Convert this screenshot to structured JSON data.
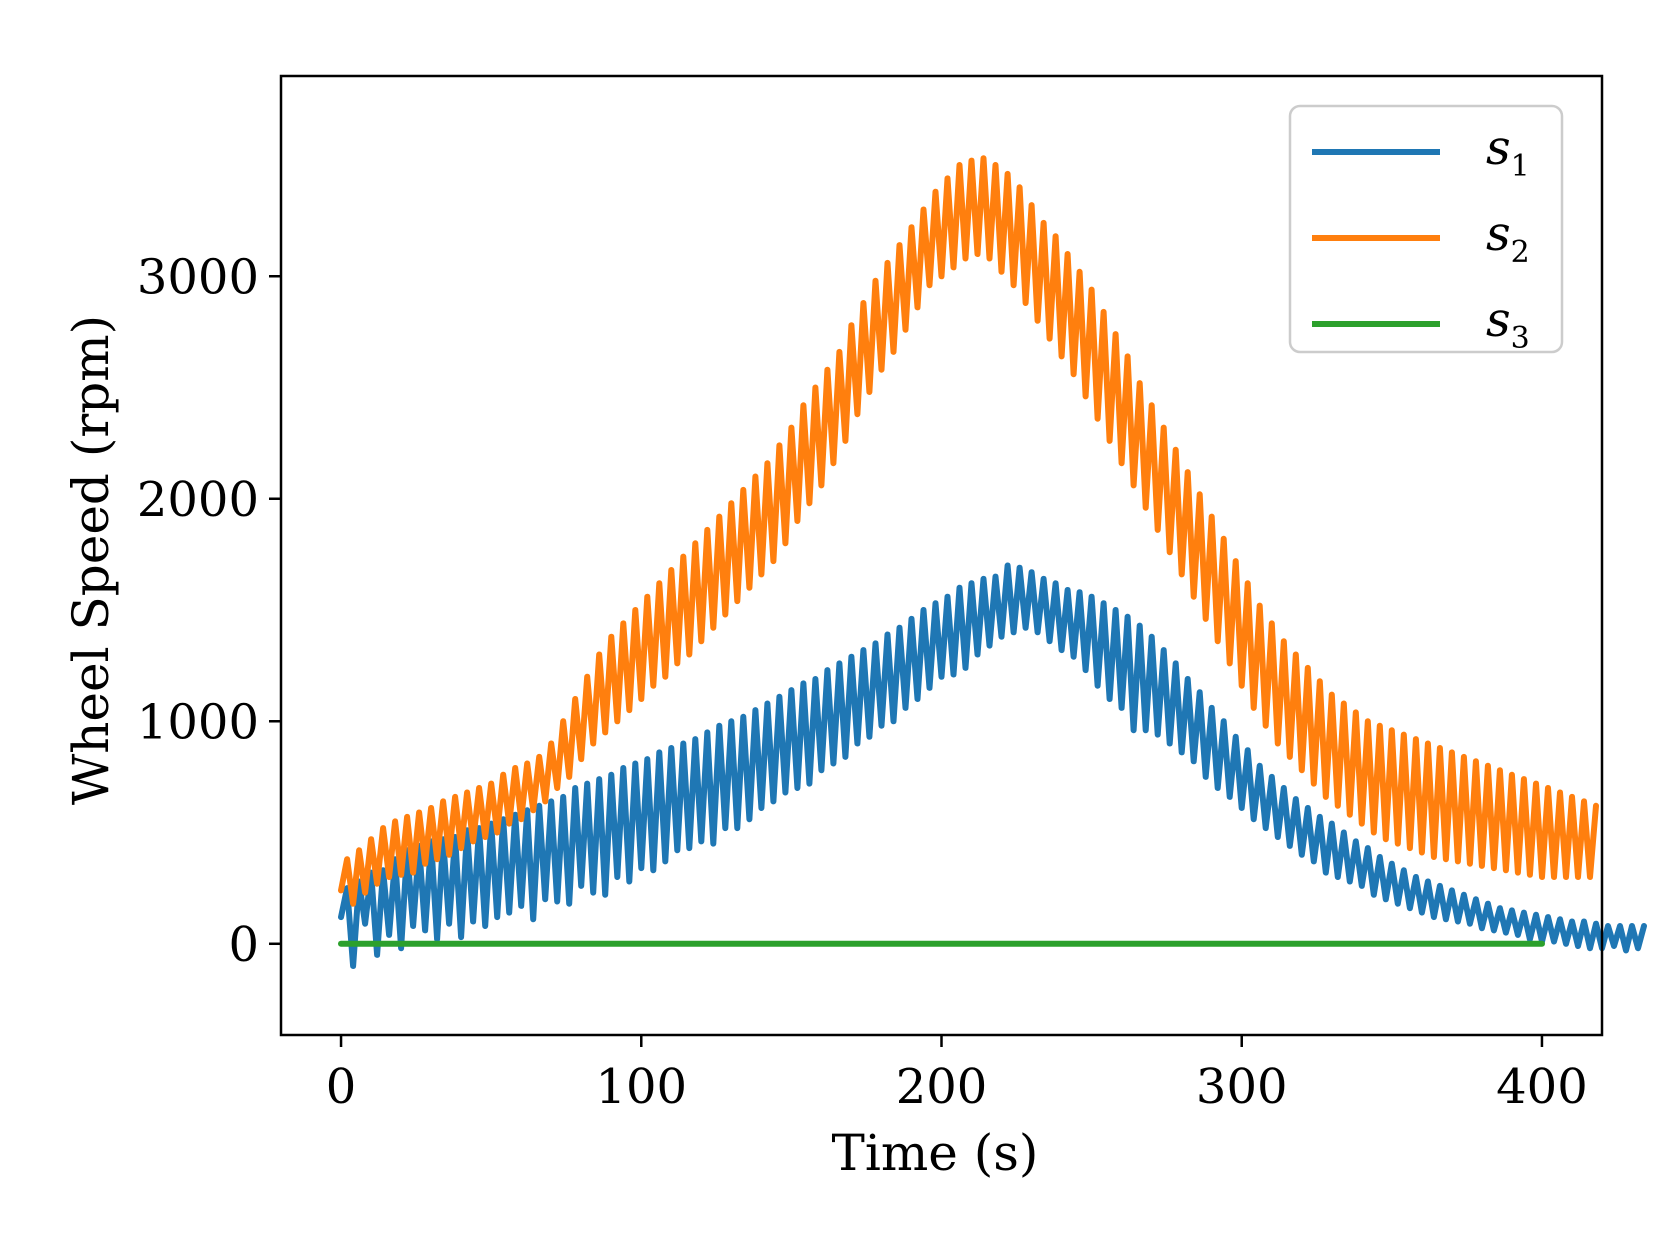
{
  "chart_data": {
    "type": "line",
    "title": "",
    "xlabel": "Time (s)",
    "ylabel": "Wheel Speed (rpm)",
    "xlim": [
      -20,
      420
    ],
    "ylim": [
      -410,
      3900
    ],
    "xticks": [
      0,
      100,
      200,
      300,
      400
    ],
    "yticks": [
      0,
      1000,
      2000,
      3000
    ],
    "grid": false,
    "legend_position": "top-right",
    "x_sample_spacing": 2,
    "series": [
      {
        "name": "s",
        "sub": "1",
        "color": "#1f77b4",
        "values": [
          120,
          250,
          -100,
          280,
          90,
          320,
          -50,
          330,
          40,
          380,
          -20,
          420,
          80,
          440,
          60,
          460,
          20,
          470,
          90,
          480,
          30,
          510,
          100,
          520,
          80,
          540,
          120,
          560,
          140,
          580,
          170,
          600,
          110,
          620,
          200,
          640,
          190,
          660,
          180,
          700,
          260,
          720,
          230,
          740,
          220,
          760,
          300,
          790,
          280,
          810,
          340,
          830,
          330,
          860,
          370,
          880,
          420,
          900,
          430,
          920,
          460,
          950,
          450,
          980,
          520,
          1000,
          520,
          1020,
          560,
          1050,
          610,
          1080,
          640,
          1110,
          680,
          1140,
          700,
          1170,
          720,
          1190,
          780,
          1230,
          810,
          1260,
          840,
          1290,
          900,
          1320,
          930,
          1350,
          980,
          1390,
          1000,
          1420,
          1060,
          1460,
          1100,
          1500,
          1150,
          1530,
          1200,
          1560,
          1210,
          1600,
          1240,
          1620,
          1300,
          1640,
          1340,
          1650,
          1380,
          1700,
          1400,
          1690,
          1420,
          1670,
          1400,
          1640,
          1360,
          1620,
          1320,
          1590,
          1290,
          1580,
          1230,
          1560,
          1160,
          1530,
          1100,
          1500,
          1060,
          1470,
          960,
          1430,
          960,
          1380,
          940,
          1320,
          900,
          1260,
          860,
          1190,
          820,
          1130,
          750,
          1060,
          700,
          1000,
          660,
          930,
          610,
          870,
          560,
          800,
          520,
          750,
          480,
          700,
          440,
          650,
          400,
          610,
          370,
          570,
          320,
          540,
          300,
          500,
          280,
          460,
          260,
          430,
          220,
          390,
          200,
          360,
          180,
          330,
          160,
          300,
          140,
          280,
          120,
          260,
          110,
          240,
          100,
          220,
          90,
          200,
          70,
          180,
          60,
          160,
          50,
          150,
          40,
          140,
          20,
          130,
          10,
          120,
          10,
          110,
          0,
          100,
          -10,
          100,
          -20,
          90,
          -20,
          80,
          -10,
          80,
          -30,
          80,
          -20,
          80
        ]
      },
      {
        "name": "s",
        "sub": "2",
        "color": "#ff7f0e",
        "values": [
          240,
          380,
          180,
          420,
          230,
          470,
          270,
          520,
          300,
          550,
          310,
          570,
          320,
          590,
          360,
          610,
          380,
          640,
          400,
          660,
          430,
          680,
          460,
          700,
          480,
          720,
          500,
          760,
          540,
          790,
          560,
          810,
          600,
          840,
          640,
          900,
          700,
          1000,
          750,
          1100,
          830,
          1200,
          900,
          1300,
          950,
          1380,
          1000,
          1440,
          1050,
          1500,
          1100,
          1560,
          1160,
          1620,
          1200,
          1680,
          1260,
          1740,
          1300,
          1800,
          1360,
          1860,
          1420,
          1920,
          1480,
          1980,
          1540,
          2040,
          1600,
          2100,
          1660,
          2160,
          1720,
          2240,
          1800,
          2320,
          1900,
          2420,
          1980,
          2500,
          2060,
          2580,
          2160,
          2660,
          2260,
          2780,
          2380,
          2880,
          2480,
          2980,
          2580,
          3060,
          2660,
          3140,
          2760,
          3220,
          2860,
          3300,
          2960,
          3380,
          3000,
          3440,
          3040,
          3500,
          3080,
          3520,
          3100,
          3530,
          3080,
          3500,
          3020,
          3460,
          2960,
          3400,
          2880,
          3320,
          2800,
          3240,
          2720,
          3180,
          2640,
          3100,
          2560,
          3020,
          2460,
          2940,
          2360,
          2840,
          2260,
          2740,
          2160,
          2640,
          2060,
          2520,
          1960,
          2420,
          1860,
          2320,
          1760,
          2220,
          1660,
          2120,
          1560,
          2020,
          1460,
          1920,
          1360,
          1820,
          1260,
          1720,
          1160,
          1620,
          1060,
          1520,
          980,
          1440,
          900,
          1360,
          840,
          1300,
          780,
          1240,
          720,
          1180,
          660,
          1120,
          620,
          1080,
          580,
          1040,
          540,
          1000,
          500,
          980,
          470,
          960,
          450,
          940,
          430,
          920,
          410,
          900,
          390,
          880,
          380,
          860,
          370,
          840,
          360,
          820,
          350,
          800,
          340,
          780,
          330,
          760,
          320,
          740,
          310,
          720,
          300,
          700,
          300,
          680,
          300,
          660,
          300,
          640,
          300,
          620
        ]
      },
      {
        "name": "s",
        "sub": "3",
        "color": "#2ca02c",
        "values": [
          0,
          0,
          0,
          0,
          0,
          0,
          0,
          0,
          0,
          0,
          0,
          0,
          0,
          0,
          0,
          0,
          0,
          0,
          0,
          0,
          0,
          0,
          0,
          0,
          0,
          0,
          0,
          0,
          0,
          0,
          0,
          0,
          0,
          0,
          0,
          0,
          0,
          0,
          0,
          0,
          0,
          0,
          0,
          0,
          0,
          0,
          0,
          0,
          0,
          0,
          0,
          0,
          0,
          0,
          0,
          0,
          0,
          0,
          0,
          0,
          0,
          0,
          0,
          0,
          0,
          0,
          0,
          0,
          0,
          0,
          0,
          0,
          0,
          0,
          0,
          0,
          0,
          0,
          0,
          0,
          0,
          0,
          0,
          0,
          0,
          0,
          0,
          0,
          0,
          0,
          0,
          0,
          0,
          0,
          0,
          0,
          0,
          0,
          0,
          0,
          0,
          0,
          0,
          0,
          0,
          0,
          0,
          0,
          0,
          0,
          0,
          0,
          0,
          0,
          0,
          0,
          0,
          0,
          0,
          0,
          0,
          0,
          0,
          0,
          0,
          0,
          0,
          0,
          0,
          0,
          0,
          0,
          0,
          0,
          0,
          0,
          0,
          0,
          0,
          0,
          0,
          0,
          0,
          0,
          0,
          0,
          0,
          0,
          0,
          0,
          0,
          0,
          0,
          0,
          0,
          0,
          0,
          0,
          0,
          0,
          0,
          0,
          0,
          0,
          0,
          0,
          0,
          0,
          0,
          0,
          0,
          0,
          0,
          0,
          0,
          0,
          0,
          0,
          0,
          0,
          0,
          0,
          0,
          0,
          0,
          0,
          0,
          0,
          0,
          0,
          0,
          0,
          0,
          0,
          0,
          0,
          0,
          0,
          0,
          0,
          0
        ]
      }
    ]
  }
}
